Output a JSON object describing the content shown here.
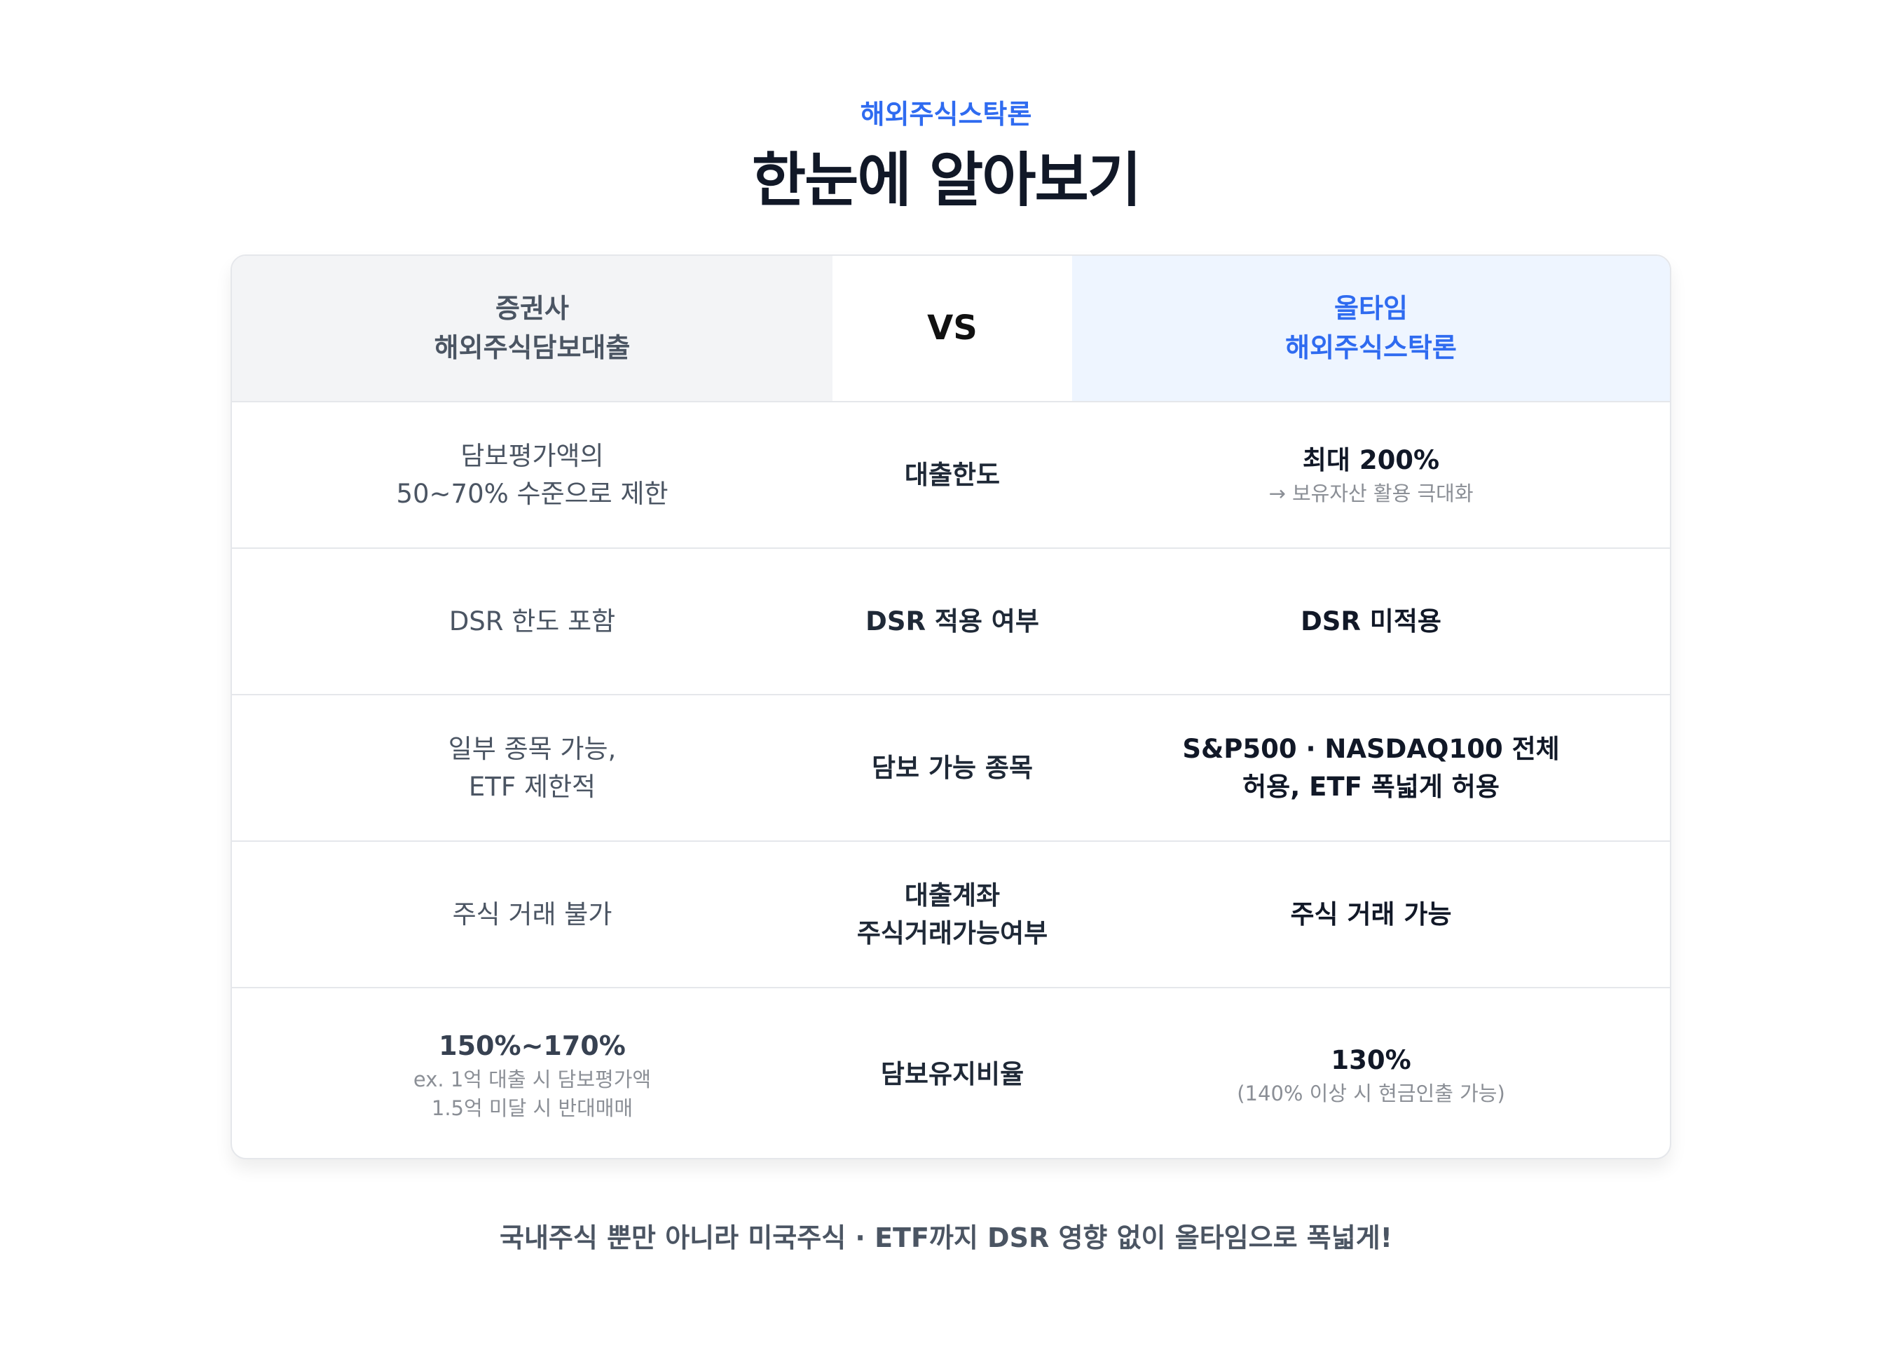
{
  "header": {
    "eyebrow": "해외주식스탁론",
    "title": "한눈에 알아보기"
  },
  "table": {
    "head": {
      "left": [
        "증권사",
        "해외주식담보대출"
      ],
      "middle": "VS",
      "right": [
        "올타임",
        "해외주식스탁론"
      ]
    },
    "rows": [
      {
        "left": [
          "담보평가액의",
          "50~70% 수준으로 제한"
        ],
        "label": [
          "대출한도"
        ],
        "right": [
          "최대 200%"
        ],
        "right_sub": [
          "→ 보유자산 활용 극대화"
        ]
      },
      {
        "left": [
          "DSR 한도 포함"
        ],
        "label": [
          "DSR 적용 여부"
        ],
        "right": [
          "DSR 미적용"
        ]
      },
      {
        "left": [
          "일부 종목 가능,",
          "ETF 제한적"
        ],
        "label": [
          "담보 가능 종목"
        ],
        "right": [
          "S&P500 · NASDAQ100 전체",
          "허용, ETF 폭넓게 허용"
        ]
      },
      {
        "left": [
          "주식 거래 불가"
        ],
        "label": [
          "대출계좌",
          "주식거래가능여부"
        ],
        "right": [
          "주식 거래 가능"
        ]
      },
      {
        "left_strong": "150%~170%",
        "left_sub": [
          "ex. 1억 대출 시 담보평가액",
          "1.5억 미달 시 반대매매"
        ],
        "label": [
          "담보유지비율"
        ],
        "right": [
          "130%"
        ],
        "right_sub": [
          "(140% 이상 시 현금인출 가능)"
        ]
      }
    ]
  },
  "footer": "국내주식 뿐만 아니라 미국주식 · ETF까지 DSR 영향 없이 올타임으로 폭넓게!",
  "colors": {
    "accent": "#2f6bf0",
    "header_left_bg": "#f3f4f6",
    "header_right_bg": "#eef5ff"
  }
}
